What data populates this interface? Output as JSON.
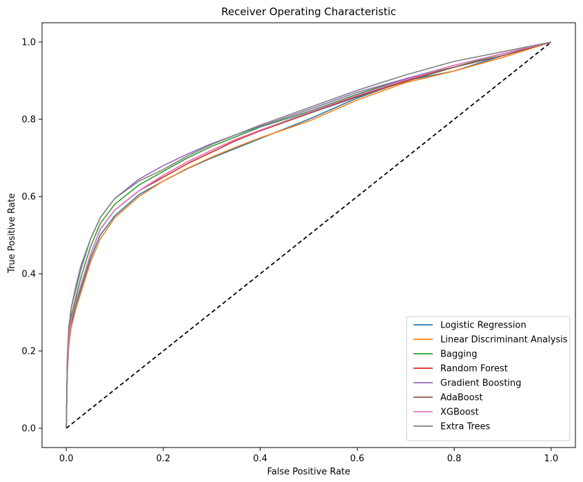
{
  "chart_data": {
    "type": "line",
    "title": "Receiver Operating Characteristic",
    "xlabel": "False Positive Rate",
    "ylabel": "True Positive Rate",
    "xlim": [
      -0.05,
      1.05
    ],
    "ylim": [
      -0.05,
      1.05
    ],
    "xticks": [
      "0.0",
      "0.2",
      "0.4",
      "0.6",
      "0.8",
      "1.0"
    ],
    "yticks": [
      "0.0",
      "0.2",
      "0.4",
      "0.6",
      "0.8",
      "1.0"
    ],
    "grid": false,
    "legend_position": "lower-right",
    "x": [
      0,
      0.002,
      0.005,
      0.01,
      0.02,
      0.03,
      0.05,
      0.07,
      0.1,
      0.15,
      0.2,
      0.25,
      0.3,
      0.35,
      0.4,
      0.5,
      0.6,
      0.7,
      0.8,
      0.9,
      1.0
    ],
    "series": [
      {
        "name": "Logistic Regression",
        "color": "#1f77b4",
        "values": [
          0,
          0.15,
          0.22,
          0.27,
          0.32,
          0.36,
          0.44,
          0.5,
          0.55,
          0.605,
          0.64,
          0.672,
          0.7,
          0.725,
          0.75,
          0.8,
          0.855,
          0.9,
          0.925,
          0.965,
          1.0
        ]
      },
      {
        "name": "Linear Discriminant Analysis",
        "color": "#ff7f0e",
        "values": [
          0,
          0.14,
          0.21,
          0.26,
          0.31,
          0.35,
          0.43,
          0.49,
          0.545,
          0.6,
          0.64,
          0.673,
          0.702,
          0.728,
          0.752,
          0.795,
          0.85,
          0.895,
          0.925,
          0.96,
          1.0
        ]
      },
      {
        "name": "Bagging",
        "color": "#2ca02c",
        "values": [
          0,
          0.16,
          0.23,
          0.29,
          0.34,
          0.39,
          0.47,
          0.53,
          0.58,
          0.63,
          0.665,
          0.7,
          0.73,
          0.755,
          0.78,
          0.82,
          0.865,
          0.905,
          0.935,
          0.97,
          1.0
        ]
      },
      {
        "name": "Random Forest",
        "color": "#d62728",
        "values": [
          0,
          0.15,
          0.23,
          0.28,
          0.33,
          0.37,
          0.45,
          0.515,
          0.565,
          0.615,
          0.65,
          0.685,
          0.715,
          0.745,
          0.77,
          0.815,
          0.86,
          0.9,
          0.935,
          0.965,
          1.0
        ]
      },
      {
        "name": "Gradient Boosting",
        "color": "#9467bd",
        "values": [
          0,
          0.17,
          0.25,
          0.31,
          0.36,
          0.41,
          0.49,
          0.545,
          0.595,
          0.645,
          0.68,
          0.71,
          0.737,
          0.76,
          0.782,
          0.825,
          0.87,
          0.905,
          0.94,
          0.97,
          1.0
        ]
      },
      {
        "name": "AdaBoost",
        "color": "#8c564b",
        "values": [
          0,
          0.15,
          0.22,
          0.28,
          0.33,
          0.37,
          0.45,
          0.515,
          0.565,
          0.615,
          0.655,
          0.69,
          0.72,
          0.748,
          0.772,
          0.815,
          0.858,
          0.898,
          0.935,
          0.965,
          1.0
        ]
      },
      {
        "name": "XGBoost",
        "color": "#e377c2",
        "values": [
          0,
          0.15,
          0.22,
          0.28,
          0.33,
          0.37,
          0.45,
          0.515,
          0.565,
          0.615,
          0.655,
          0.69,
          0.72,
          0.748,
          0.772,
          0.818,
          0.862,
          0.902,
          0.94,
          0.97,
          1.0
        ]
      },
      {
        "name": "Extra Trees",
        "color": "#7f7f7f",
        "values": [
          0,
          0.18,
          0.26,
          0.31,
          0.37,
          0.42,
          0.49,
          0.545,
          0.595,
          0.64,
          0.67,
          0.705,
          0.735,
          0.76,
          0.785,
          0.83,
          0.875,
          0.915,
          0.95,
          0.975,
          1.0
        ]
      }
    ],
    "reference_line": {
      "x": [
        0,
        1
      ],
      "y": [
        0,
        1
      ],
      "color": "#000000",
      "style": "dashed"
    }
  }
}
